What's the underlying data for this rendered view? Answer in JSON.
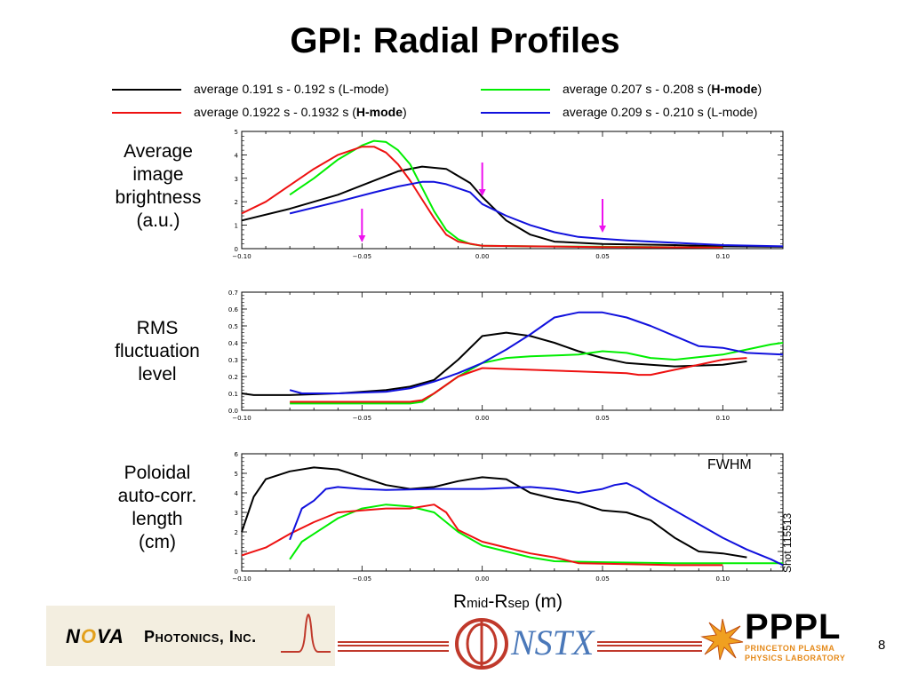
{
  "title": "GPI: Radial Profiles",
  "legend": [
    {
      "label": "average 0.191 s - 0.192 s (L-mode)",
      "color": "#000000"
    },
    {
      "label_pre": "average 0.207 s - 0.208 s (",
      "label_bold": "H-mode",
      "label_post": ")",
      "color": "#00ee00"
    },
    {
      "label_pre": "average 0.1922 s - 0.1932 s (",
      "label_bold": "H-mode",
      "label_post": ")",
      "color": "#ee1111"
    },
    {
      "label": "average 0.209 s - 0.210 s (L-mode)",
      "color": "#1111dd"
    }
  ],
  "panel_labels": {
    "brightness": [
      "Average",
      "image",
      "brightness",
      "(a.u.)"
    ],
    "rms": [
      "RMS",
      "fluctuation",
      "level"
    ],
    "corr": [
      "Poloidal",
      "auto-corr.",
      "length",
      "(cm)"
    ]
  },
  "xlabel": {
    "r1": "R",
    "sub1": "mid",
    "dash": "-R",
    "sub2": "sep",
    "unit": " (m)"
  },
  "fwhm_label": "FWHM",
  "shot_label": "Shot 115513",
  "page_number": "8",
  "logos": {
    "nova_pre": "N",
    "nova_o": "O",
    "nova_post": "VA",
    "nova_sub": "Photonics, Inc.",
    "nstx": "NSTX",
    "pppl": "PPPL",
    "pppl_sub": [
      "PRINCETON PLASMA",
      "PHYSICS LABORATORY"
    ]
  },
  "chart_data": [
    {
      "type": "line",
      "name": "brightness",
      "xlim": [
        -0.1,
        0.125
      ],
      "ylim": [
        0,
        5
      ],
      "xticks": [
        "-0.10",
        "-0.05",
        "0.00",
        "0.05",
        "0.10"
      ],
      "yticks": [
        "0",
        "1",
        "2",
        "3",
        "4",
        "5"
      ],
      "arrows_x": [
        -0.05,
        0.0,
        0.05
      ],
      "series": [
        {
          "color": "#000000",
          "points": [
            [
              -0.1,
              1.2
            ],
            [
              -0.08,
              1.7
            ],
            [
              -0.06,
              2.3
            ],
            [
              -0.045,
              2.9
            ],
            [
              -0.035,
              3.3
            ],
            [
              -0.025,
              3.5
            ],
            [
              -0.015,
              3.4
            ],
            [
              -0.005,
              2.8
            ],
            [
              0.0,
              2.2
            ],
            [
              0.01,
              1.2
            ],
            [
              0.02,
              0.6
            ],
            [
              0.03,
              0.3
            ],
            [
              0.05,
              0.2
            ],
            [
              0.08,
              0.15
            ],
            [
              0.1,
              0.1
            ],
            [
              0.125,
              0.08
            ]
          ]
        },
        {
          "color": "#00ee00",
          "points": [
            [
              -0.08,
              2.3
            ],
            [
              -0.07,
              3.0
            ],
            [
              -0.06,
              3.8
            ],
            [
              -0.05,
              4.4
            ],
            [
              -0.045,
              4.6
            ],
            [
              -0.04,
              4.55
            ],
            [
              -0.035,
              4.2
            ],
            [
              -0.03,
              3.6
            ],
            [
              -0.025,
              2.6
            ],
            [
              -0.02,
              1.6
            ],
            [
              -0.015,
              0.8
            ],
            [
              -0.01,
              0.4
            ],
            [
              -0.005,
              0.2
            ],
            [
              0.0,
              0.12
            ],
            [
              0.02,
              0.1
            ],
            [
              0.05,
              0.08
            ],
            [
              0.08,
              0.06
            ],
            [
              0.1,
              0.05
            ]
          ]
        },
        {
          "color": "#ee1111",
          "points": [
            [
              -0.1,
              1.5
            ],
            [
              -0.09,
              2.0
            ],
            [
              -0.08,
              2.7
            ],
            [
              -0.07,
              3.4
            ],
            [
              -0.06,
              4.0
            ],
            [
              -0.05,
              4.35
            ],
            [
              -0.045,
              4.35
            ],
            [
              -0.04,
              4.1
            ],
            [
              -0.035,
              3.6
            ],
            [
              -0.03,
              2.9
            ],
            [
              -0.025,
              2.1
            ],
            [
              -0.02,
              1.3
            ],
            [
              -0.015,
              0.6
            ],
            [
              -0.01,
              0.3
            ],
            [
              0.0,
              0.12
            ],
            [
              0.02,
              0.1
            ],
            [
              0.05,
              0.07
            ],
            [
              0.1,
              0.05
            ]
          ]
        },
        {
          "color": "#1111dd",
          "points": [
            [
              -0.08,
              1.5
            ],
            [
              -0.06,
              2.0
            ],
            [
              -0.045,
              2.4
            ],
            [
              -0.035,
              2.65
            ],
            [
              -0.025,
              2.85
            ],
            [
              -0.02,
              2.85
            ],
            [
              -0.015,
              2.75
            ],
            [
              -0.005,
              2.4
            ],
            [
              0.0,
              1.9
            ],
            [
              0.01,
              1.4
            ],
            [
              0.02,
              1.0
            ],
            [
              0.03,
              0.7
            ],
            [
              0.04,
              0.5
            ],
            [
              0.05,
              0.42
            ],
            [
              0.06,
              0.35
            ],
            [
              0.08,
              0.25
            ],
            [
              0.1,
              0.15
            ],
            [
              0.125,
              0.1
            ]
          ]
        }
      ]
    },
    {
      "type": "line",
      "name": "rms",
      "xlim": [
        -0.1,
        0.125
      ],
      "ylim": [
        0,
        0.7
      ],
      "xticks": [
        "-0.10",
        "-0.05",
        "0.00",
        "0.05",
        "0.10"
      ],
      "yticks": [
        "0.0",
        "0.1",
        "0.2",
        "0.3",
        "0.4",
        "0.5",
        "0.6",
        "0.7"
      ],
      "series": [
        {
          "color": "#000000",
          "points": [
            [
              -0.1,
              0.1
            ],
            [
              -0.095,
              0.09
            ],
            [
              -0.08,
              0.09
            ],
            [
              -0.06,
              0.1
            ],
            [
              -0.04,
              0.12
            ],
            [
              -0.03,
              0.14
            ],
            [
              -0.02,
              0.18
            ],
            [
              -0.01,
              0.3
            ],
            [
              0.0,
              0.44
            ],
            [
              0.01,
              0.46
            ],
            [
              0.02,
              0.44
            ],
            [
              0.03,
              0.4
            ],
            [
              0.04,
              0.35
            ],
            [
              0.05,
              0.31
            ],
            [
              0.06,
              0.28
            ],
            [
              0.07,
              0.27
            ],
            [
              0.08,
              0.26
            ],
            [
              0.1,
              0.27
            ],
            [
              0.11,
              0.29
            ]
          ]
        },
        {
          "color": "#00ee00",
          "points": [
            [
              -0.08,
              0.04
            ],
            [
              -0.06,
              0.04
            ],
            [
              -0.03,
              0.04
            ],
            [
              -0.025,
              0.05
            ],
            [
              -0.02,
              0.1
            ],
            [
              -0.01,
              0.2
            ],
            [
              0.0,
              0.28
            ],
            [
              0.01,
              0.31
            ],
            [
              0.02,
              0.32
            ],
            [
              0.04,
              0.33
            ],
            [
              0.05,
              0.35
            ],
            [
              0.06,
              0.34
            ],
            [
              0.07,
              0.31
            ],
            [
              0.08,
              0.3
            ],
            [
              0.1,
              0.33
            ],
            [
              0.11,
              0.36
            ],
            [
              0.12,
              0.39
            ],
            [
              0.125,
              0.4
            ]
          ]
        },
        {
          "color": "#ee1111",
          "points": [
            [
              -0.08,
              0.05
            ],
            [
              -0.06,
              0.05
            ],
            [
              -0.03,
              0.05
            ],
            [
              -0.025,
              0.06
            ],
            [
              -0.02,
              0.1
            ],
            [
              -0.01,
              0.2
            ],
            [
              0.0,
              0.25
            ],
            [
              0.02,
              0.24
            ],
            [
              0.04,
              0.23
            ],
            [
              0.06,
              0.22
            ],
            [
              0.065,
              0.21
            ],
            [
              0.07,
              0.21
            ],
            [
              0.08,
              0.24
            ],
            [
              0.09,
              0.27
            ],
            [
              0.1,
              0.3
            ],
            [
              0.11,
              0.31
            ]
          ]
        },
        {
          "color": "#1111dd",
          "points": [
            [
              -0.08,
              0.12
            ],
            [
              -0.075,
              0.1
            ],
            [
              -0.06,
              0.1
            ],
            [
              -0.04,
              0.11
            ],
            [
              -0.03,
              0.13
            ],
            [
              -0.02,
              0.17
            ],
            [
              -0.01,
              0.22
            ],
            [
              0.0,
              0.28
            ],
            [
              0.01,
              0.36
            ],
            [
              0.02,
              0.45
            ],
            [
              0.03,
              0.55
            ],
            [
              0.04,
              0.58
            ],
            [
              0.05,
              0.58
            ],
            [
              0.06,
              0.55
            ],
            [
              0.07,
              0.5
            ],
            [
              0.08,
              0.44
            ],
            [
              0.09,
              0.38
            ],
            [
              0.1,
              0.37
            ],
            [
              0.11,
              0.34
            ],
            [
              0.125,
              0.33
            ]
          ]
        }
      ]
    },
    {
      "type": "line",
      "name": "corr",
      "xlim": [
        -0.1,
        0.125
      ],
      "ylim": [
        0,
        6
      ],
      "xticks": [
        "-0.10",
        "-0.05",
        "0.00",
        "0.05",
        "0.10"
      ],
      "yticks": [
        "0",
        "1",
        "2",
        "3",
        "4",
        "5",
        "6"
      ],
      "series": [
        {
          "color": "#000000",
          "points": [
            [
              -0.1,
              2.0
            ],
            [
              -0.095,
              3.8
            ],
            [
              -0.09,
              4.7
            ],
            [
              -0.08,
              5.1
            ],
            [
              -0.07,
              5.3
            ],
            [
              -0.06,
              5.2
            ],
            [
              -0.05,
              4.8
            ],
            [
              -0.04,
              4.4
            ],
            [
              -0.03,
              4.2
            ],
            [
              -0.02,
              4.3
            ],
            [
              -0.01,
              4.6
            ],
            [
              0.0,
              4.8
            ],
            [
              0.01,
              4.7
            ],
            [
              0.02,
              4.0
            ],
            [
              0.03,
              3.7
            ],
            [
              0.04,
              3.5
            ],
            [
              0.05,
              3.1
            ],
            [
              0.06,
              3.0
            ],
            [
              0.07,
              2.6
            ],
            [
              0.08,
              1.7
            ],
            [
              0.09,
              1.0
            ],
            [
              0.1,
              0.9
            ],
            [
              0.11,
              0.7
            ]
          ]
        },
        {
          "color": "#00ee00",
          "points": [
            [
              -0.08,
              0.6
            ],
            [
              -0.075,
              1.5
            ],
            [
              -0.07,
              1.9
            ],
            [
              -0.06,
              2.7
            ],
            [
              -0.05,
              3.2
            ],
            [
              -0.04,
              3.4
            ],
            [
              -0.03,
              3.3
            ],
            [
              -0.02,
              3.0
            ],
            [
              -0.01,
              2.0
            ],
            [
              0.0,
              1.3
            ],
            [
              0.01,
              1.0
            ],
            [
              0.02,
              0.7
            ],
            [
              0.03,
              0.5
            ],
            [
              0.05,
              0.45
            ],
            [
              0.08,
              0.4
            ],
            [
              0.1,
              0.4
            ],
            [
              0.125,
              0.4
            ]
          ]
        },
        {
          "color": "#ee1111",
          "points": [
            [
              -0.1,
              0.8
            ],
            [
              -0.09,
              1.2
            ],
            [
              -0.08,
              1.9
            ],
            [
              -0.07,
              2.5
            ],
            [
              -0.06,
              3.0
            ],
            [
              -0.05,
              3.1
            ],
            [
              -0.04,
              3.2
            ],
            [
              -0.03,
              3.2
            ],
            [
              -0.02,
              3.4
            ],
            [
              -0.015,
              3.0
            ],
            [
              -0.01,
              2.1
            ],
            [
              0.0,
              1.5
            ],
            [
              0.01,
              1.2
            ],
            [
              0.02,
              0.9
            ],
            [
              0.03,
              0.7
            ],
            [
              0.04,
              0.4
            ],
            [
              0.06,
              0.35
            ],
            [
              0.08,
              0.3
            ],
            [
              0.1,
              0.3
            ]
          ]
        },
        {
          "color": "#1111dd",
          "points": [
            [
              -0.08,
              1.6
            ],
            [
              -0.075,
              3.2
            ],
            [
              -0.07,
              3.6
            ],
            [
              -0.065,
              4.2
            ],
            [
              -0.06,
              4.3
            ],
            [
              -0.05,
              4.2
            ],
            [
              -0.04,
              4.15
            ],
            [
              -0.02,
              4.2
            ],
            [
              0.0,
              4.2
            ],
            [
              0.02,
              4.3
            ],
            [
              0.03,
              4.2
            ],
            [
              0.04,
              4.0
            ],
            [
              0.05,
              4.2
            ],
            [
              0.055,
              4.4
            ],
            [
              0.06,
              4.5
            ],
            [
              0.065,
              4.2
            ],
            [
              0.07,
              3.8
            ],
            [
              0.08,
              3.1
            ],
            [
              0.09,
              2.4
            ],
            [
              0.1,
              1.7
            ],
            [
              0.11,
              1.1
            ],
            [
              0.12,
              0.6
            ],
            [
              0.125,
              0.3
            ]
          ]
        }
      ]
    }
  ]
}
